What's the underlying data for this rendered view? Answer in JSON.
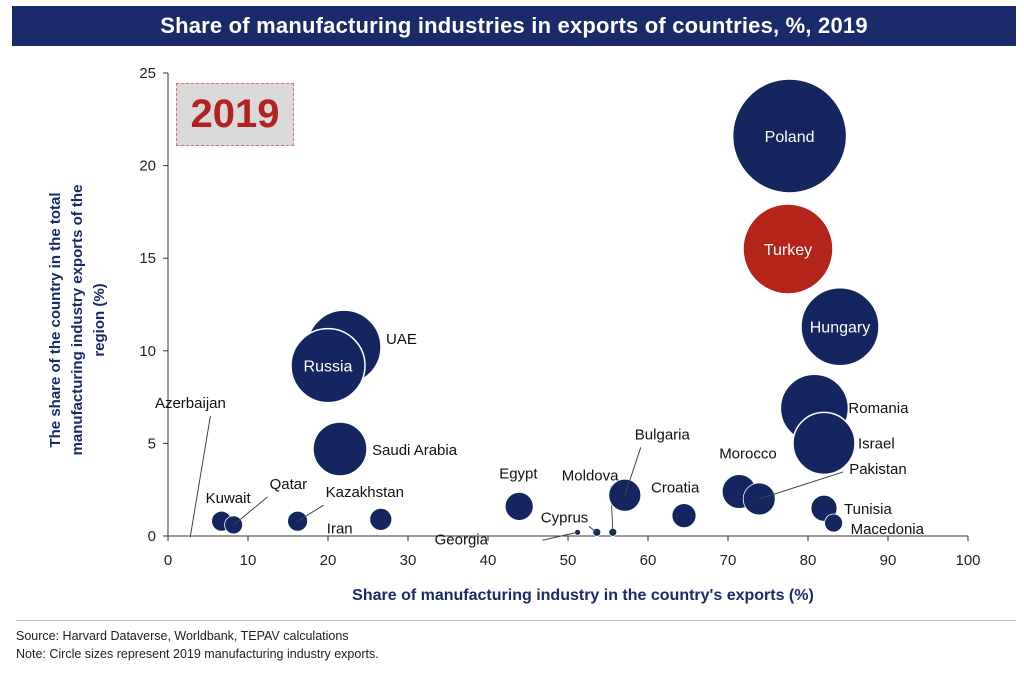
{
  "title": "Share of manufacturing industries in exports of countries, %, 2019",
  "badge": "2019",
  "footer": {
    "source": "Source: Harvard Dataverse, Worldbank, TEPAV calculations",
    "note": "Note: Circle sizes represent 2019 manufacturing industry exports."
  },
  "colors": {
    "navy": "#14255f",
    "red": "#b32519",
    "title_bg": "#1b2a6b"
  },
  "chart_data": {
    "type": "scatter",
    "xlabel": "Share of manufacturing industry in the country's exports (%)",
    "ylabel": [
      "The share of the country in the total",
      "manufacturing industry exports of the",
      "region (%)"
    ],
    "xlim": [
      0,
      100
    ],
    "ylim": [
      0,
      25
    ],
    "xticks": [
      0,
      10,
      20,
      30,
      40,
      50,
      60,
      70,
      80,
      90,
      100
    ],
    "yticks": [
      0,
      5,
      10,
      15,
      20,
      25
    ],
    "points": [
      {
        "name": "Poland",
        "x": 77.7,
        "y": 21.6
      },
      {
        "name": "Turkey",
        "x": 77.5,
        "y": 15.5,
        "highlight": true
      },
      {
        "name": "Hungary",
        "x": 84.0,
        "y": 11.3
      },
      {
        "name": "UAE",
        "x": 22.0,
        "y": 10.2
      },
      {
        "name": "Russia",
        "x": 20.0,
        "y": 9.2
      },
      {
        "name": "Romania",
        "x": 80.8,
        "y": 6.9
      },
      {
        "name": "Israel",
        "x": 82.0,
        "y": 5.0
      },
      {
        "name": "Saudi Arabia",
        "x": 21.5,
        "y": 4.7
      },
      {
        "name": "Azerbaijan",
        "x": 2.8,
        "y": 0.0
      },
      {
        "name": "Kuwait",
        "x": 6.7,
        "y": 0.8
      },
      {
        "name": "Qatar",
        "x": 8.2,
        "y": 0.6
      },
      {
        "name": "Kazakhstan",
        "x": 16.2,
        "y": 0.8
      },
      {
        "name": "Iran",
        "x": 26.6,
        "y": 0.9
      },
      {
        "name": "Egypt",
        "x": 43.9,
        "y": 1.6
      },
      {
        "name": "Georgia",
        "x": 51.2,
        "y": 0.2
      },
      {
        "name": "Cyprus",
        "x": 53.6,
        "y": 0.2
      },
      {
        "name": "Moldova",
        "x": 55.6,
        "y": 0.2
      },
      {
        "name": "Bulgaria",
        "x": 57.1,
        "y": 2.2
      },
      {
        "name": "Croatia",
        "x": 64.5,
        "y": 1.1
      },
      {
        "name": "Morocco",
        "x": 71.4,
        "y": 2.4
      },
      {
        "name": "Pakistan",
        "x": 73.9,
        "y": 2.0
      },
      {
        "name": "Tunisia",
        "x": 82.0,
        "y": 1.5
      },
      {
        "name": "Macedonia",
        "x": 83.2,
        "y": 0.7
      }
    ]
  }
}
